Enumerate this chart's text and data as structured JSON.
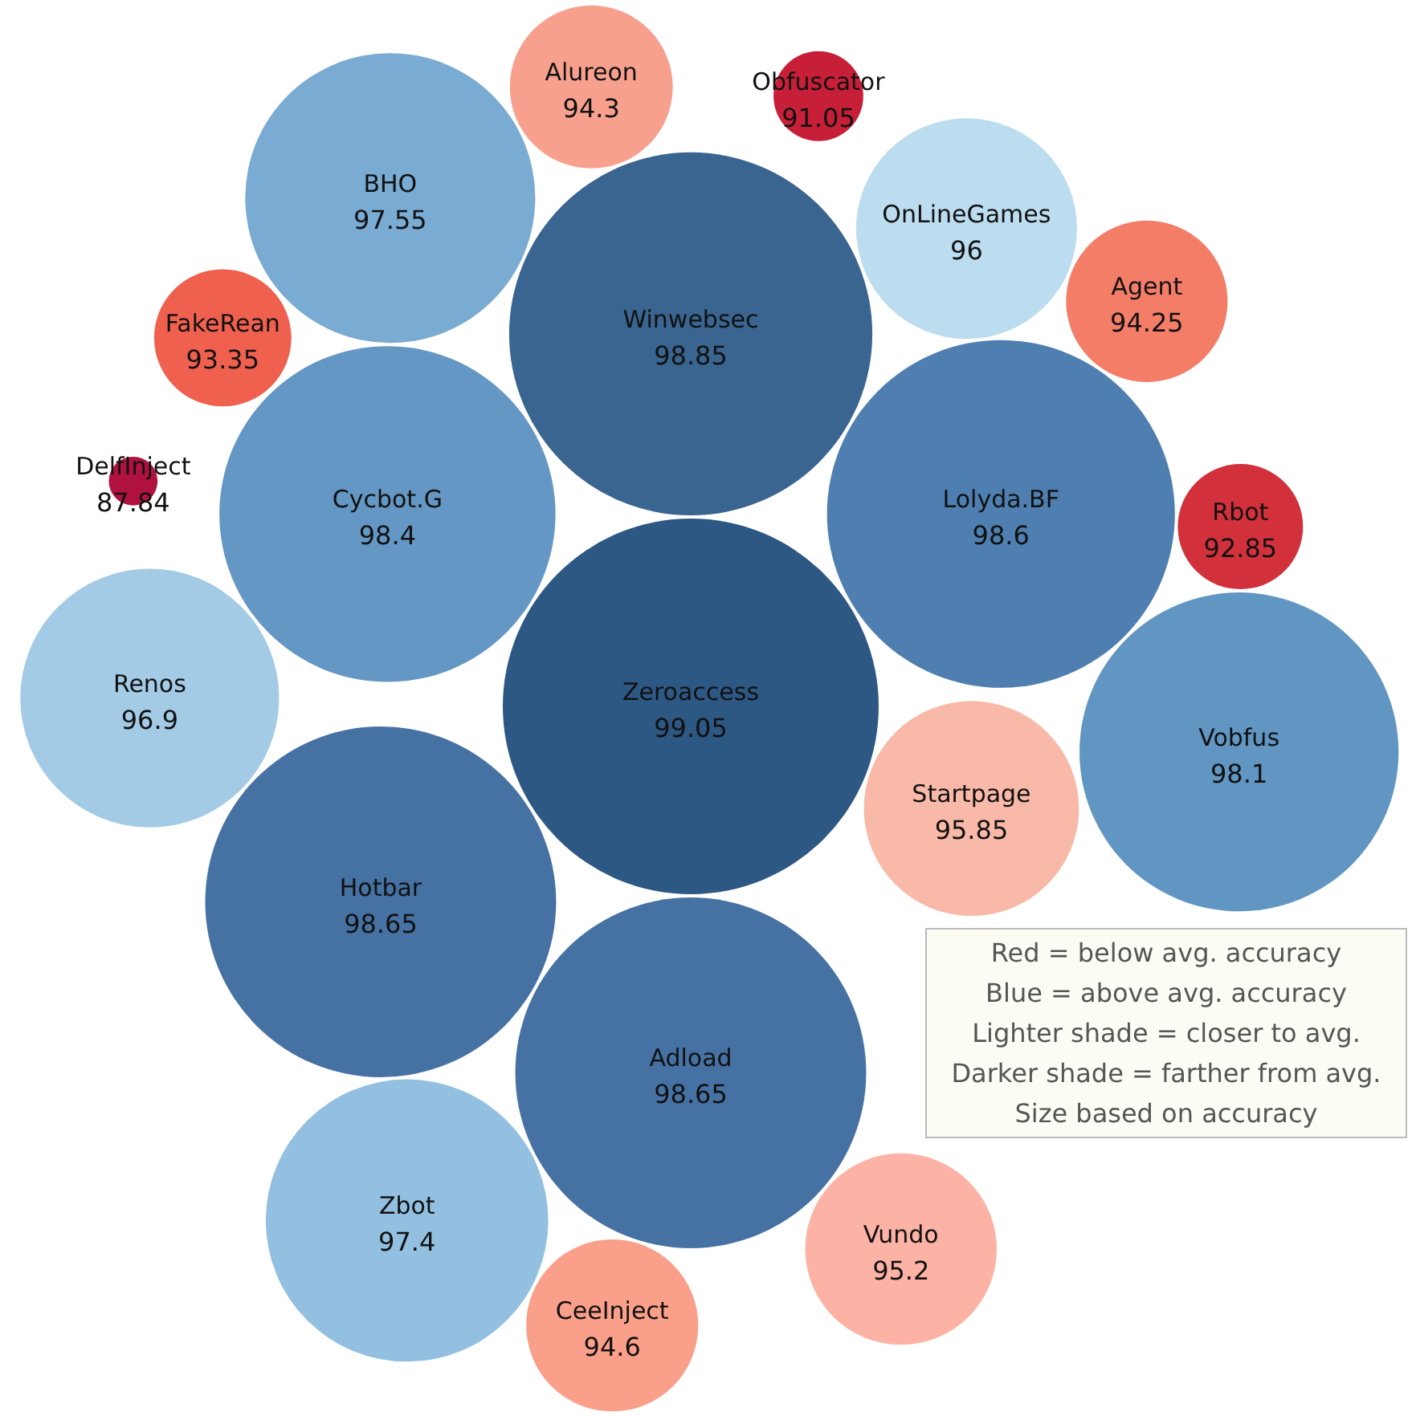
{
  "chart_data": {
    "type": "other",
    "categories": [
      "Startpage",
      "Renos",
      "Vobfus",
      "OnLineGames",
      "Rbot",
      "BHO",
      "Vundo",
      "CeeInject",
      "Obfuscator",
      "Adload",
      "Agent",
      "Lolyda.BF",
      "Winwebsec",
      "Alureon",
      "Cycbot.G",
      "DelfInject",
      "FakeRean",
      "Hotbar",
      "Zbot",
      "Zeroaccess"
    ],
    "values": [
      95.85,
      96.9,
      98.1,
      96,
      92.85,
      97.55,
      95.2,
      94.6,
      91.05,
      98.65,
      94.25,
      98.6,
      98.85,
      94.3,
      98.4,
      87.84,
      93.35,
      98.65,
      97.4,
      99.05
    ],
    "colors": [
      "#f9b9a8",
      "#a3cbe6",
      "#6196c3",
      "#bcdcef",
      "#d2313c",
      "#7aabd3",
      "#fcb3a5",
      "#f99f8a",
      "#c81f39",
      "#4672a3",
      "#f47d68",
      "#4e7fb0",
      "#3a6590",
      "#f8a08e",
      "#6497c4",
      "#b0123f",
      "#f0604f",
      "#4672a3",
      "#93c0e0",
      "#2d5884"
    ],
    "data_labels": true,
    "annotations": [
      "Red = below avg. accuracy",
      "Blue = above avg. accuracy",
      "Lighter shade = closer to avg.",
      "Darker shade = farther from avg.",
      "Size based on accuracy"
    ]
  }
}
